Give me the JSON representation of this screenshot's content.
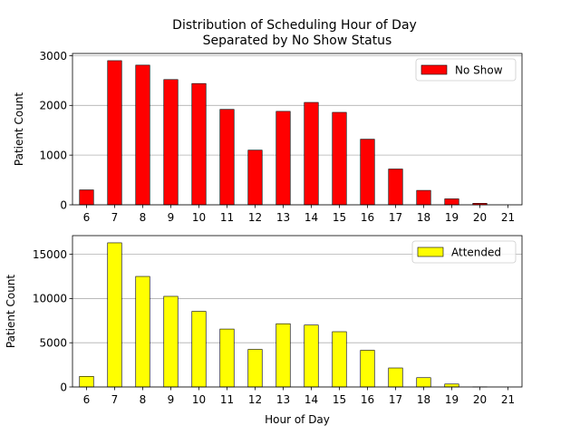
{
  "title_line1": "Distribution of Scheduling Hour of Day",
  "title_line2": "Separated by No Show Status",
  "chart_data": [
    {
      "type": "bar",
      "categories": [
        "6",
        "7",
        "8",
        "9",
        "10",
        "11",
        "12",
        "13",
        "14",
        "15",
        "16",
        "17",
        "18",
        "19",
        "20",
        "21"
      ],
      "series": [
        {
          "name": "No Show",
          "values": [
            300,
            2900,
            2810,
            2520,
            2440,
            1920,
            1100,
            1880,
            2060,
            1860,
            1320,
            720,
            290,
            120,
            30,
            0
          ]
        }
      ],
      "ylabel": "Patient Count",
      "xlabel": "",
      "ylim": [
        0,
        3045
      ],
      "yticks": [
        0,
        1000,
        2000,
        3000
      ],
      "grid": "y",
      "legend": "top-right",
      "color": "#ff0000"
    },
    {
      "type": "bar",
      "categories": [
        "6",
        "7",
        "8",
        "9",
        "10",
        "11",
        "12",
        "13",
        "14",
        "15",
        "16",
        "17",
        "18",
        "19",
        "20",
        "21"
      ],
      "series": [
        {
          "name": "Attended",
          "values": [
            1200,
            16300,
            12500,
            10250,
            8550,
            6550,
            4250,
            7150,
            7000,
            6250,
            4150,
            2150,
            1050,
            330,
            20,
            0
          ]
        }
      ],
      "ylabel": "Patient Count",
      "xlabel": "Hour of Day",
      "ylim": [
        0,
        17115
      ],
      "yticks": [
        0,
        5000,
        10000,
        15000
      ],
      "grid": "y",
      "legend": "top-right",
      "color": "#ffff00"
    }
  ]
}
